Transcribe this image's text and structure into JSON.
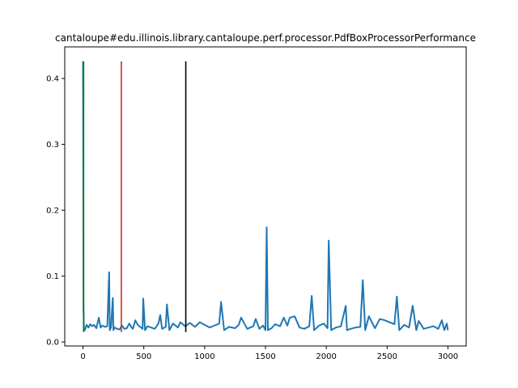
{
  "chart_data": {
    "type": "line",
    "title": "cantaloupe#edu.illinois.library.cantaloupe.perf.processor.PdfBoxProcessorPerformance",
    "xlabel": "",
    "ylabel": "",
    "xlim": [
      -150,
      3150
    ],
    "ylim": [
      -0.006,
      0.448
    ],
    "x_ticks": [
      0,
      500,
      1000,
      1500,
      2000,
      2500,
      3000
    ],
    "y_ticks": [
      0.0,
      0.1,
      0.2,
      0.3,
      0.4
    ],
    "y_tick_labels": [
      "0.0",
      "0.1",
      "0.2",
      "0.3",
      "0.4"
    ],
    "grid": false,
    "series": [
      {
        "color": "#1f77b4",
        "x": [
          0,
          2,
          4,
          8,
          15,
          30,
          45,
          60,
          75,
          90,
          110,
          130,
          145,
          160,
          180,
          200,
          215,
          220,
          230,
          245,
          250,
          260,
          280,
          300,
          320,
          340,
          360,
          380,
          400,
          410,
          430,
          450,
          470,
          490,
          495,
          510,
          530,
          560,
          590,
          620,
          635,
          650,
          680,
          690,
          710,
          740,
          760,
          780,
          800,
          840,
          880,
          920,
          960,
          1000,
          1040,
          1080,
          1120,
          1135,
          1160,
          1200,
          1250,
          1280,
          1300,
          1350,
          1400,
          1420,
          1450,
          1480,
          1500,
          1510,
          1520,
          1550,
          1580,
          1620,
          1650,
          1680,
          1700,
          1740,
          1780,
          1820,
          1860,
          1880,
          1900,
          1940,
          1980,
          2010,
          2020,
          2040,
          2080,
          2120,
          2160,
          2170,
          2200,
          2240,
          2280,
          2300,
          2320,
          2350,
          2400,
          2440,
          2480,
          2520,
          2560,
          2580,
          2600,
          2640,
          2680,
          2710,
          2740,
          2760,
          2800,
          2840,
          2880,
          2920,
          2950,
          2970,
          2990,
          2999
        ],
        "values": [
          0.426,
          0.3,
          0.05,
          0.02,
          0.018,
          0.026,
          0.022,
          0.027,
          0.024,
          0.026,
          0.021,
          0.037,
          0.022,
          0.025,
          0.023,
          0.024,
          0.106,
          0.018,
          0.022,
          0.067,
          0.018,
          0.022,
          0.02,
          0.019,
          0.025,
          0.02,
          0.021,
          0.028,
          0.022,
          0.02,
          0.033,
          0.026,
          0.023,
          0.02,
          0.066,
          0.018,
          0.024,
          0.022,
          0.02,
          0.028,
          0.041,
          0.02,
          0.023,
          0.057,
          0.018,
          0.028,
          0.025,
          0.022,
          0.03,
          0.024,
          0.029,
          0.023,
          0.03,
          0.026,
          0.022,
          0.025,
          0.028,
          0.061,
          0.018,
          0.023,
          0.021,
          0.026,
          0.037,
          0.02,
          0.024,
          0.035,
          0.02,
          0.025,
          0.018,
          0.174,
          0.018,
          0.021,
          0.027,
          0.024,
          0.037,
          0.025,
          0.037,
          0.039,
          0.022,
          0.02,
          0.024,
          0.07,
          0.018,
          0.025,
          0.028,
          0.021,
          0.154,
          0.018,
          0.022,
          0.024,
          0.055,
          0.018,
          0.02,
          0.022,
          0.023,
          0.094,
          0.018,
          0.039,
          0.021,
          0.035,
          0.033,
          0.03,
          0.027,
          0.069,
          0.018,
          0.026,
          0.022,
          0.055,
          0.018,
          0.032,
          0.02,
          0.022,
          0.024,
          0.02,
          0.033,
          0.018,
          0.028,
          0.018
        ]
      }
    ],
    "vertical_lines": [
      {
        "x": 5,
        "y_from": 0.015,
        "y_to": 0.426,
        "color": "#008000"
      },
      {
        "x": 315,
        "y_from": 0.015,
        "y_to": 0.426,
        "color": "#d62728"
      },
      {
        "x": 845,
        "y_from": 0.015,
        "y_to": 0.426,
        "color": "#000000"
      }
    ]
  }
}
